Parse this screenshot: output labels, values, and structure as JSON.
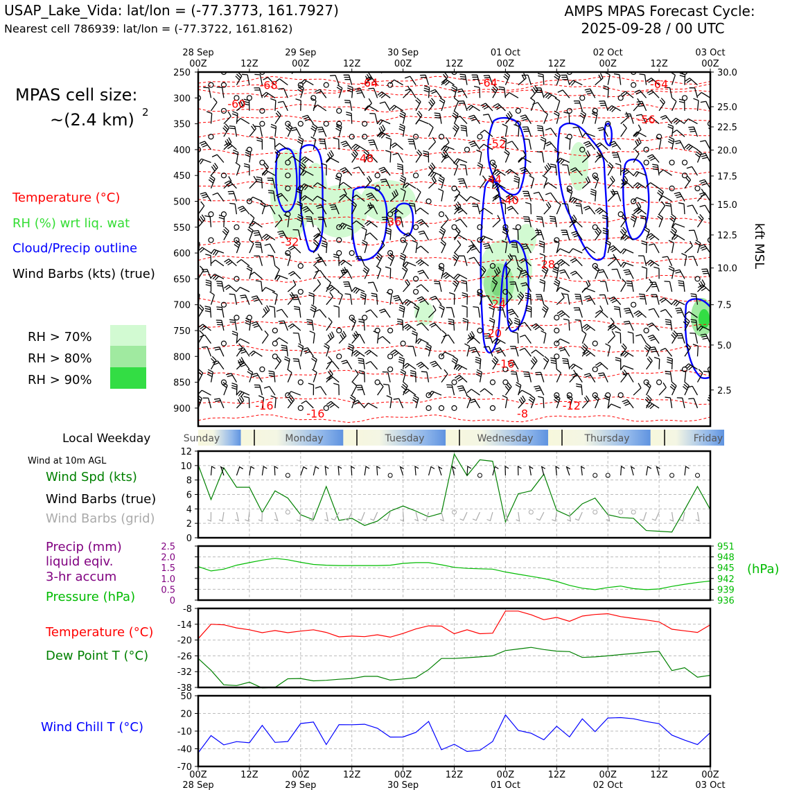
{
  "header": {
    "station_line": "USAP_Lake_Vida: lat/lon = (-77.3773, 161.7927)",
    "nearest_line": "Nearest cell 786939: lat/lon = (-77.3722, 161.8162)",
    "cycle_title": "AMPS MPAS Forecast Cycle:",
    "cycle_date": "2025-09-28 / 00 UTC"
  },
  "legend": {
    "cell_size_label": "MPAS cell size:",
    "cell_size_value": "~(2.4 km)",
    "cell_size_exp": "2",
    "temperature": "Temperature (°C)",
    "rh": "RH (%) wrt liq. wat",
    "cloud": "Cloud/Precip outline",
    "wind": "Wind Barbs (kts) (true)",
    "rh70": "RH > 70%",
    "rh80": "RH > 80%",
    "rh90": "RH > 90%"
  },
  "colors": {
    "temperature": "#ff0000",
    "rh_text": "#33dd33",
    "cloud": "#0000ff",
    "rh70": "#d2fad2",
    "rh80": "#a0eaa0",
    "rh90": "#33dd44",
    "wind_spd": "#008000",
    "grid_barbs": "#aaaaaa",
    "precip": "#800080",
    "pressure": "#00bb00",
    "dewpoint": "#008000",
    "windchill": "#0000ff"
  },
  "time_axis": {
    "top_dates": [
      "28 Sep",
      "29 Sep",
      "30 Sep",
      "01 Oct",
      "02 Oct",
      "03 Oct"
    ],
    "hour_labels": [
      "00Z",
      "12Z",
      "00Z",
      "12Z",
      "00Z",
      "12Z",
      "00Z",
      "12Z",
      "00Z",
      "12Z",
      "00Z"
    ],
    "weekdays": [
      "Sunday",
      "Monday",
      "Tuesday",
      "Wednesday",
      "Thursday",
      "Friday"
    ],
    "weekday_axis_label": "Local Weekday"
  },
  "chart_data": [
    {
      "type": "line",
      "panel": "cross_section",
      "ylabel_left": "",
      "ylabel_right": "kft MSL",
      "pressure_ticks": [
        250,
        300,
        350,
        400,
        450,
        500,
        550,
        600,
        650,
        700,
        750,
        800,
        850,
        900
      ],
      "height_ticks": [
        30.0,
        25.0,
        22.5,
        20.0,
        17.5,
        15.0,
        12.5,
        10.0,
        7.5,
        5.0,
        2.5
      ],
      "ylim_hPa": [
        250,
        935
      ],
      "xlim_hours": [
        0,
        120
      ],
      "temperature_labels": [
        {
          "value": "-68",
          "hour": 16.5,
          "p": 275
        },
        {
          "value": "-64",
          "hour": 40,
          "p": 270
        },
        {
          "value": "-64",
          "hour": 68,
          "p": 270
        },
        {
          "value": "-64",
          "hour": 108,
          "p": 273
        },
        {
          "value": "-60",
          "hour": 9,
          "p": 311
        },
        {
          "value": "-56",
          "hour": 105,
          "p": 341
        },
        {
          "value": "-52",
          "hour": 70,
          "p": 388
        },
        {
          "value": "-48",
          "hour": 39,
          "p": 416
        },
        {
          "value": "-44",
          "hour": 69,
          "p": 457
        },
        {
          "value": "-40",
          "hour": 73,
          "p": 497
        },
        {
          "value": "-36",
          "hour": 45.5,
          "p": 539
        },
        {
          "value": "-32",
          "hour": 21.5,
          "p": 578
        },
        {
          "value": "-28",
          "hour": 81.5,
          "p": 621
        },
        {
          "value": "-24",
          "hour": 70,
          "p": 698
        },
        {
          "value": "-20",
          "hour": 69,
          "p": 755
        },
        {
          "value": "-16",
          "hour": 72,
          "p": 814
        },
        {
          "value": "-16",
          "hour": 15.5,
          "p": 895
        },
        {
          "value": "-16",
          "hour": 27.5,
          "p": 910
        },
        {
          "value": "-12",
          "hour": 87.5,
          "p": 895
        },
        {
          "value": "-8",
          "hour": 76,
          "p": 910
        }
      ]
    },
    {
      "type": "line",
      "panel": "wind_10m",
      "title": "Wind at 10m AGL",
      "series": [
        {
          "name": "Wind Spd (kts)",
          "x": [
            0,
            3,
            6,
            9,
            12,
            15,
            18,
            21,
            24,
            27,
            30,
            33,
            36,
            39,
            42,
            45,
            48,
            51,
            54,
            57,
            60,
            63,
            66,
            69,
            72,
            75,
            78,
            81,
            84,
            87,
            90,
            93,
            96,
            99,
            102,
            105,
            108,
            111,
            114,
            117,
            120
          ],
          "values": [
            10.1,
            5.3,
            9.7,
            7.0,
            7.0,
            3.5,
            6.5,
            5.5,
            3.2,
            2.5,
            7.1,
            2.4,
            2.7,
            1.7,
            2.3,
            3.7,
            4.4,
            3.7,
            2.9,
            3.4,
            11.6,
            8.6,
            10.8,
            10.6,
            2.2,
            6.1,
            6.5,
            8.8,
            3.8,
            3.0,
            4.7,
            5.5,
            3.2,
            2.8,
            2.7,
            1.0,
            0.9,
            0.8,
            3.9,
            7.1,
            3.9
          ]
        }
      ],
      "label_black_barbs": "Wind Barbs (true)",
      "label_grid_barbs": "Wind Barbs (grid)",
      "yticks": [
        0,
        2,
        4,
        6,
        8,
        10,
        12
      ],
      "ylim": [
        0,
        12
      ]
    },
    {
      "type": "line",
      "panel": "precip_pressure",
      "precip_label_1": "Precip (mm)",
      "precip_label_2": "liquid eqiv.",
      "precip_label_3": "3-hr accum",
      "pressure_label": "Pressure (hPa)",
      "right_unit": "(hPa)",
      "precip_ticks": [
        "2.5",
        "2.0",
        "1.5",
        "1.0",
        "0.5",
        "0"
      ],
      "pressure_ticks": [
        "951",
        "948",
        "945",
        "942",
        "939",
        "936"
      ],
      "ylim_precip": [
        0,
        2.5
      ],
      "ylim_pressure": [
        936,
        951
      ],
      "series": [
        {
          "name": "Pressure (hPa)",
          "x": [
            0,
            3,
            6,
            9,
            12,
            15,
            18,
            21,
            24,
            27,
            30,
            33,
            36,
            39,
            42,
            45,
            48,
            51,
            54,
            57,
            60,
            63,
            66,
            69,
            72,
            75,
            78,
            81,
            84,
            87,
            90,
            93,
            96,
            99,
            102,
            105,
            108,
            111,
            114,
            117,
            120
          ],
          "values": [
            945.3,
            944.1,
            944.6,
            945.7,
            946.4,
            947.1,
            947.6,
            947.2,
            946.5,
            945.9,
            945.7,
            945.6,
            945.6,
            945.6,
            945.6,
            945.7,
            946.2,
            946.4,
            946.4,
            945.8,
            945.1,
            944.8,
            944.7,
            944.6,
            943.8,
            943.2,
            942.6,
            942.0,
            941.2,
            940.1,
            939.3,
            938.9,
            939.5,
            939.9,
            939.2,
            938.9,
            939.1,
            939.8,
            940.4,
            940.9,
            941.3
          ]
        }
      ]
    },
    {
      "type": "line",
      "panel": "temp_dewpoint",
      "yticks": [
        -8,
        -14,
        -20,
        -26,
        -32,
        -38
      ],
      "ylim": [
        -38,
        -8
      ],
      "series": [
        {
          "name": "Temperature (°C)",
          "x": [
            0,
            3,
            6,
            9,
            12,
            15,
            18,
            21,
            24,
            27,
            30,
            33,
            36,
            39,
            42,
            45,
            48,
            51,
            54,
            57,
            60,
            63,
            66,
            69,
            72,
            75,
            78,
            81,
            84,
            87,
            90,
            93,
            96,
            99,
            102,
            105,
            108,
            111,
            114,
            117,
            120
          ],
          "values": [
            -19.5,
            -14.0,
            -14.2,
            -15.4,
            -16.1,
            -17.2,
            -16.4,
            -17.2,
            -16.6,
            -16.1,
            -17.1,
            -18.8,
            -18.5,
            -18.7,
            -18.0,
            -18.9,
            -17.5,
            -15.8,
            -14.6,
            -14.7,
            -17.6,
            -16.1,
            -17.6,
            -17.4,
            -9.0,
            -9.0,
            -10.4,
            -12.3,
            -11.4,
            -12.9,
            -10.9,
            -10.3,
            -10.0,
            -11.1,
            -11.8,
            -12.4,
            -13.1,
            -15.9,
            -16.5,
            -17.1,
            -14.2
          ]
        },
        {
          "name": "Dew Point T (°C)",
          "x": [
            0,
            3,
            6,
            9,
            12,
            15,
            18,
            21,
            24,
            27,
            30,
            33,
            36,
            39,
            42,
            45,
            48,
            51,
            54,
            57,
            60,
            63,
            66,
            69,
            72,
            75,
            78,
            81,
            84,
            87,
            90,
            93,
            96,
            99,
            102,
            105,
            108,
            111,
            114,
            117,
            120
          ],
          "values": [
            -27.0,
            -31.5,
            -37.0,
            -37.3,
            -36.0,
            -38.2,
            -38.0,
            -34.7,
            -34.6,
            -35.5,
            -35.3,
            -34.9,
            -34.6,
            -33.8,
            -33.8,
            -35.2,
            -34.8,
            -34.3,
            -31.2,
            -27.0,
            -27.0,
            -26.7,
            -26.4,
            -26.0,
            -24.0,
            -23.4,
            -22.8,
            -23.6,
            -24.2,
            -24.4,
            -26.6,
            -26.4,
            -26.0,
            -25.5,
            -25.1,
            -24.6,
            -24.3,
            -31.6,
            -30.5,
            -34.1,
            -33.4
          ]
        }
      ]
    },
    {
      "type": "line",
      "panel": "wind_chill",
      "label": "Wind Chill T (°C)",
      "yticks": [
        50,
        20,
        -10,
        -40,
        -70
      ],
      "ylim": [
        -70,
        50
      ],
      "series": [
        {
          "name": "Wind Chill T (°C)",
          "x": [
            0,
            3,
            6,
            9,
            12,
            15,
            18,
            21,
            24,
            27,
            30,
            33,
            36,
            39,
            42,
            45,
            48,
            51,
            54,
            57,
            60,
            63,
            66,
            69,
            72,
            75,
            78,
            81,
            84,
            87,
            90,
            93,
            96,
            99,
            102,
            105,
            108,
            111,
            114,
            117,
            120
          ],
          "values": [
            -46.8,
            -17.7,
            -33.4,
            -27.9,
            -29.9,
            -0.4,
            -29.2,
            -27.6,
            2.8,
            5.4,
            -32.8,
            1.0,
            0.8,
            1.7,
            -5.2,
            -20.1,
            -20.0,
            -12.1,
            6.4,
            -41.6,
            -32.3,
            -44.6,
            -42.6,
            -27.6,
            17.5,
            -8.8,
            -13.7,
            -24.7,
            -1.9,
            -19.9,
            10.8,
            -11.0,
            12.2,
            13.0,
            10.9,
            6.2,
            2.6,
            -16.8,
            -25.4,
            -32.8,
            -12.6
          ]
        }
      ]
    }
  ]
}
